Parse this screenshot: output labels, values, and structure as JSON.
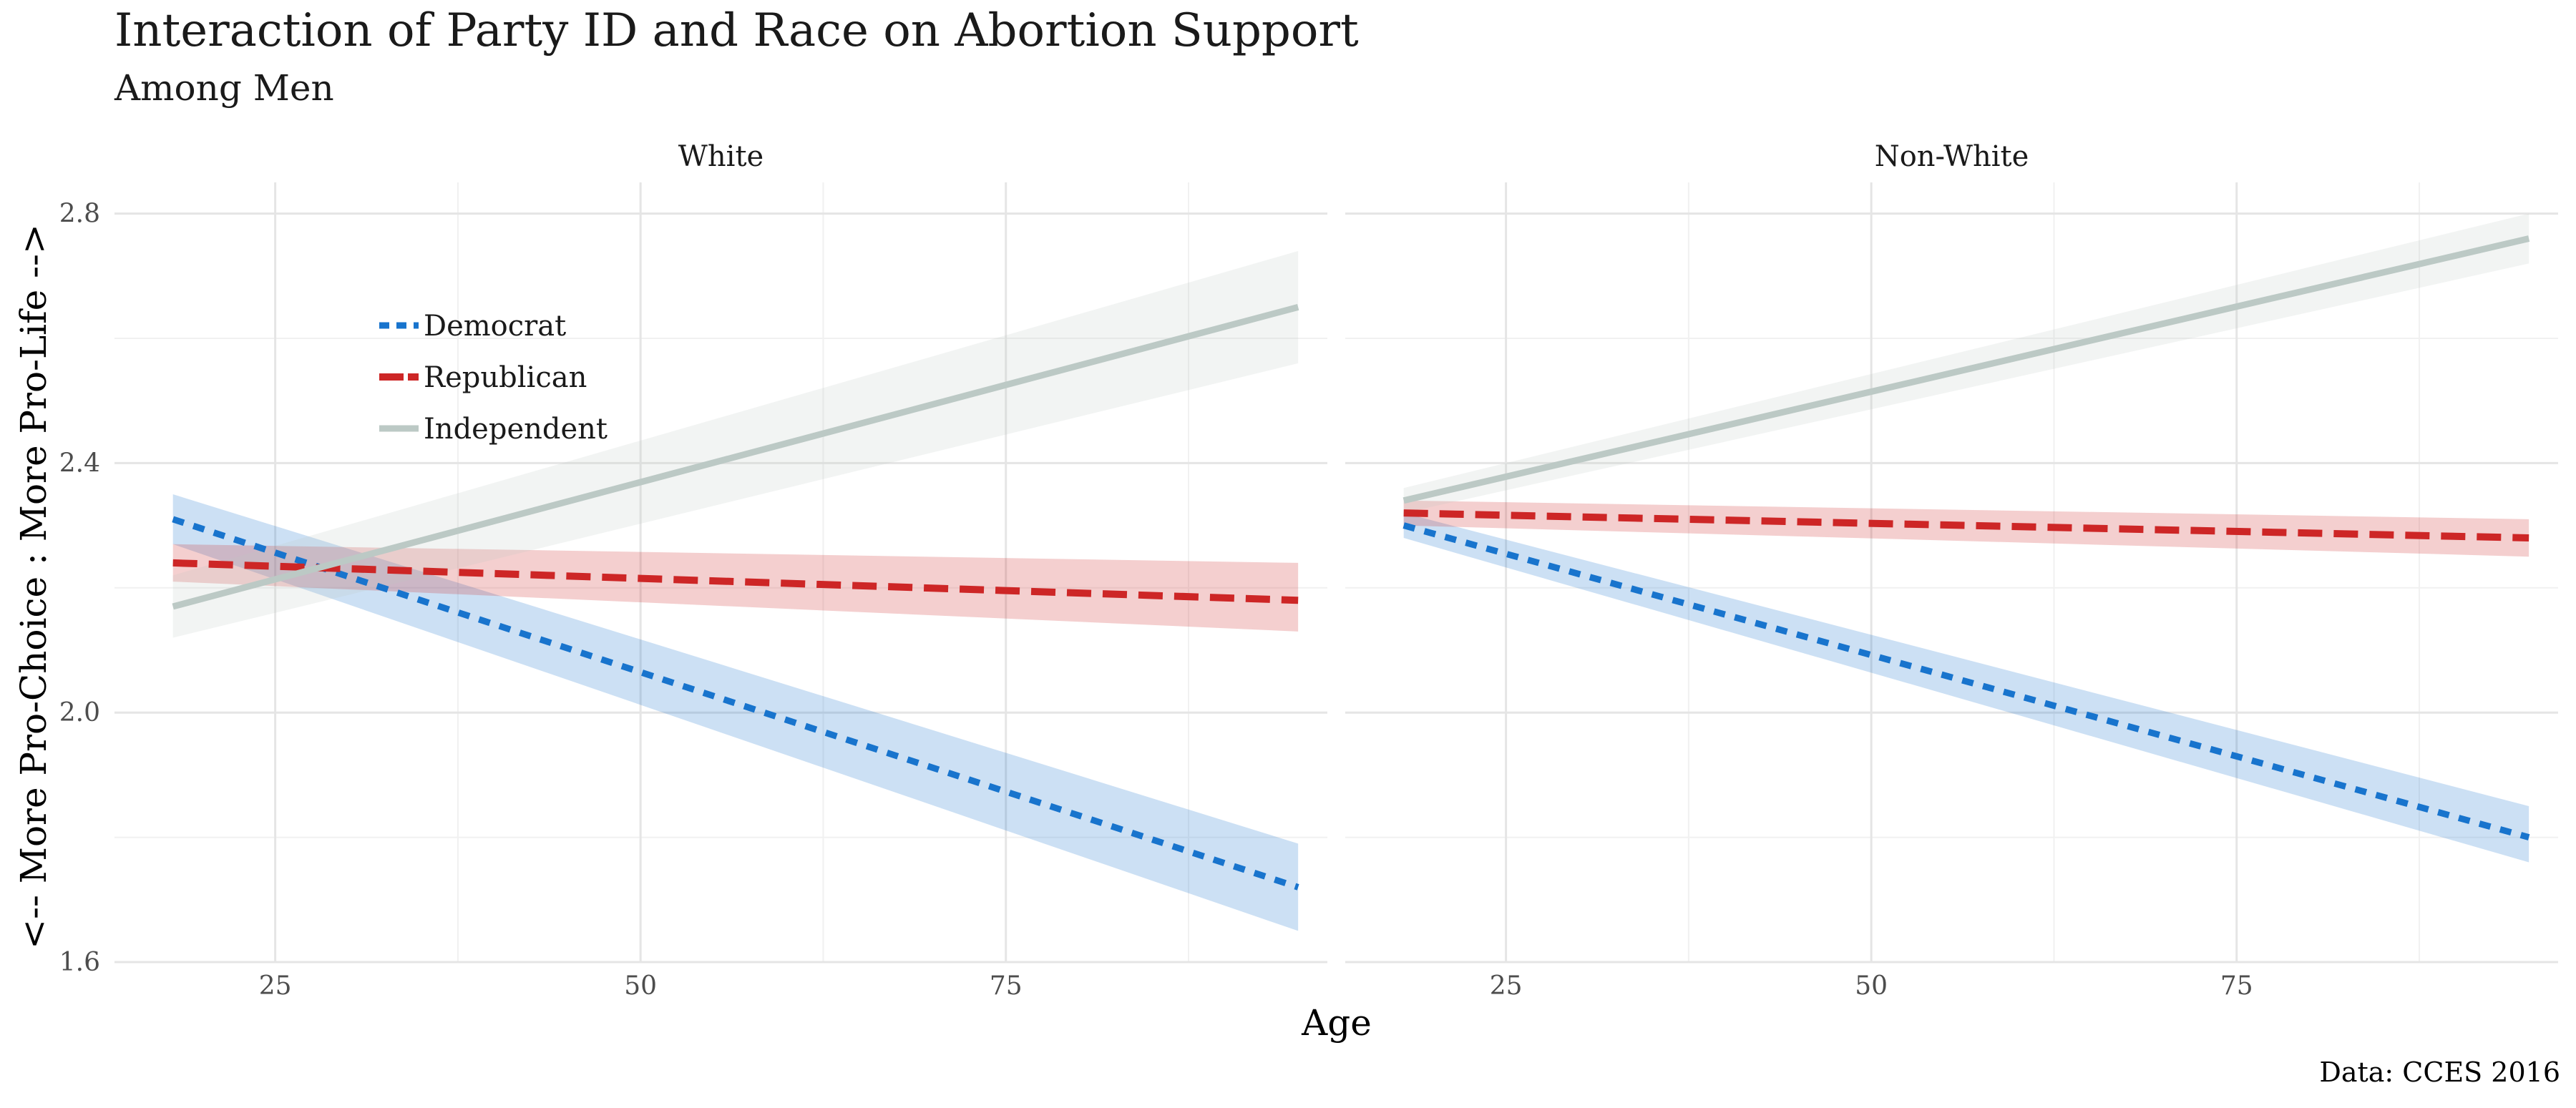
{
  "title": "Interaction of Party ID and Race on Abortion Support",
  "subtitle": "Among Men",
  "caption": "Data: CCES 2016",
  "colors": {
    "Democrat": "#1874CD",
    "Republican": "#CD2626",
    "Independent": "#BCC9C5"
  },
  "chart_data": {
    "type": "line",
    "xlabel": "Age",
    "ylabel": "<-- More Pro-Choice : More Pro-Life -->",
    "xlim": [
      14,
      97
    ],
    "ylim": [
      1.6,
      2.85
    ],
    "x_ticks": [
      25,
      50,
      75
    ],
    "y_ticks": [
      1.6,
      2.0,
      2.4,
      2.8
    ],
    "x_tick_labels": [
      "25",
      "50",
      "75"
    ],
    "y_tick_labels": [
      "1.6",
      "2.0",
      "2.4",
      "2.8"
    ],
    "grid": true,
    "legend_position": "top-left inside first panel",
    "legend": [
      "Democrat",
      "Republican",
      "Independent"
    ],
    "panels": [
      {
        "label": "White",
        "series": [
          {
            "name": "Democrat",
            "x": [
              18,
              95
            ],
            "y": [
              2.31,
              1.72
            ],
            "ci_lower": [
              2.27,
              1.65
            ],
            "ci_upper": [
              2.35,
              1.79
            ]
          },
          {
            "name": "Republican",
            "x": [
              18,
              95
            ],
            "y": [
              2.24,
              2.18
            ],
            "ci_lower": [
              2.21,
              2.13
            ],
            "ci_upper": [
              2.27,
              2.24
            ]
          },
          {
            "name": "Independent",
            "x": [
              18,
              95
            ],
            "y": [
              2.17,
              2.65
            ],
            "ci_lower": [
              2.12,
              2.56
            ],
            "ci_upper": [
              2.22,
              2.74
            ]
          }
        ]
      },
      {
        "label": "Non-White",
        "series": [
          {
            "name": "Democrat",
            "x": [
              18,
              95
            ],
            "y": [
              2.3,
              1.8
            ],
            "ci_lower": [
              2.28,
              1.76
            ],
            "ci_upper": [
              2.32,
              1.85
            ]
          },
          {
            "name": "Republican",
            "x": [
              18,
              95
            ],
            "y": [
              2.32,
              2.28
            ],
            "ci_lower": [
              2.3,
              2.25
            ],
            "ci_upper": [
              2.34,
              2.31
            ]
          },
          {
            "name": "Independent",
            "x": [
              18,
              95
            ],
            "y": [
              2.34,
              2.76
            ],
            "ci_lower": [
              2.32,
              2.72
            ],
            "ci_upper": [
              2.36,
              2.8
            ]
          }
        ]
      }
    ]
  }
}
